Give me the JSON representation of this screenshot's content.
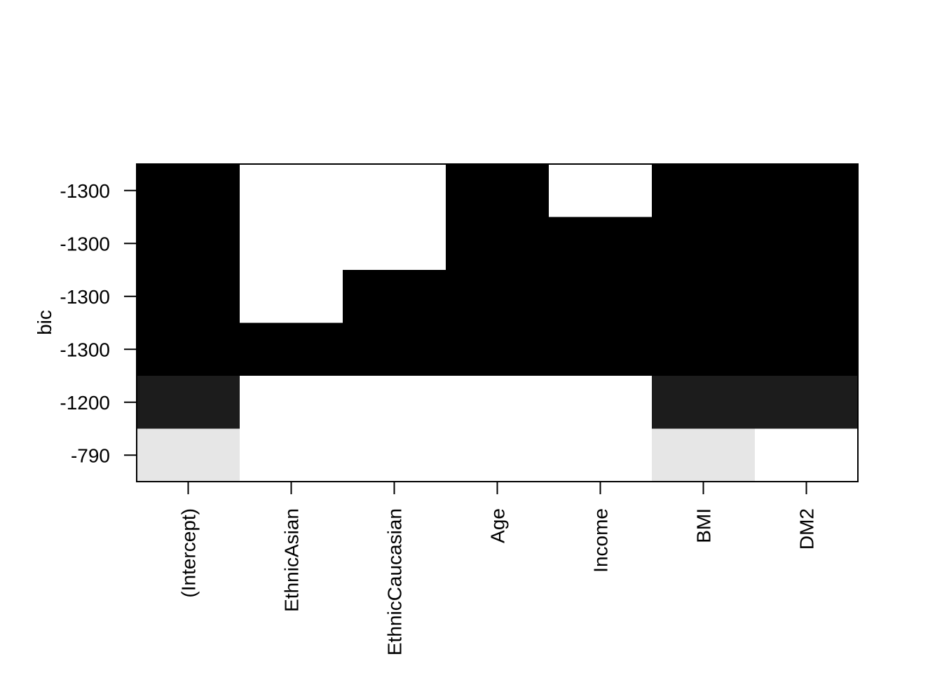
{
  "chart_data": {
    "type": "heatmap",
    "title": "",
    "xlabel": "",
    "ylabel": "bic",
    "columns": [
      "(Intercept)",
      "EthnicAsian",
      "EthnicCaucasian",
      "Age",
      "Income",
      "BMI",
      "DM2"
    ],
    "row_tick_labels": [
      "-1300",
      "-1300",
      "-1300",
      "-1300",
      "-1200",
      "-790"
    ],
    "fill_colors": [
      "#ffffff",
      "#e6e6e6",
      "#1c1c1c",
      "#000000"
    ],
    "cells": [
      [
        3,
        0,
        0,
        3,
        0,
        3,
        3
      ],
      [
        3,
        0,
        0,
        3,
        3,
        3,
        3
      ],
      [
        3,
        0,
        3,
        3,
        3,
        3,
        3
      ],
      [
        3,
        3,
        3,
        3,
        3,
        3,
        3
      ],
      [
        2,
        0,
        0,
        0,
        0,
        2,
        2
      ],
      [
        1,
        0,
        0,
        0,
        0,
        1,
        0
      ]
    ],
    "grid": false
  }
}
